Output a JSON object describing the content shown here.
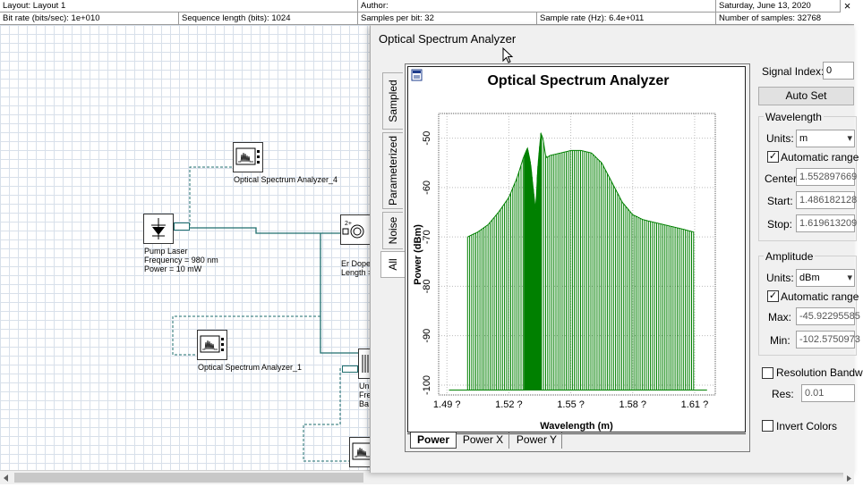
{
  "header": {
    "layout": "Layout: Layout 1",
    "author": "Author:",
    "date": "Saturday, June 13, 2020",
    "bitrate": "Bit rate (bits/sec):  1e+010",
    "seqlen": "Sequence length (bits):  1024",
    "spb": "Samples per bit:  32",
    "samplerate": "Sample rate (Hz):  6.4e+011",
    "nsamples": "Number of samples:  32768",
    "close_glyph": "×"
  },
  "components": {
    "osa4": "Optical Spectrum Analyzer_4",
    "pump_name": "Pump Laser",
    "pump_freq": "Frequency = 980  nm",
    "pump_power": "Power = 10  mW",
    "edf_name": "Er Dope",
    "edf_len": "Length =",
    "osa1": "Optical Spectrum Analyzer_1",
    "uni1": "Uni",
    "uni2": "Fre",
    "uni3": "Ba"
  },
  "window": {
    "title": "Optical Spectrum Analyzer",
    "side_tabs": [
      "Sampled",
      "Parameterized",
      "Noise",
      "All"
    ],
    "bottom_tabs": [
      "Power",
      "Power X",
      "Power Y"
    ]
  },
  "panel": {
    "signal_index_label": "Signal Index:",
    "signal_index_value": "0",
    "auto_set": "Auto Set",
    "wavelength_group": "Wavelength",
    "units_label": "Units:",
    "wl_units": "m",
    "automatic_range": "Automatic range",
    "center_label": "Center:",
    "center_value": "1.552897669",
    "start_label": "Start:",
    "start_value": "1.486182128",
    "stop_label": "Stop:",
    "stop_value": "1.619613209",
    "amplitude_group": "Amplitude",
    "amp_units": "dBm",
    "max_label": "Max:",
    "max_value": "-45.92295585",
    "min_label": "Min:",
    "min_value": "-102.5750973",
    "resolution_bandwidth": "Resolution Bandw",
    "res_label": "Res:",
    "res_value": "0.01",
    "invert_colors": "Invert Colors",
    "check_glyph": "✓",
    "dropdown_glyph": "▾"
  },
  "chart_data": {
    "type": "line",
    "title": "Optical Spectrum Analyzer",
    "xlabel": "Wavelength (m)",
    "ylabel": "Power (dBm)",
    "xlim": [
      1.486,
      1.62
    ],
    "ylim": [
      -102,
      -45
    ],
    "xticks": [
      1.49,
      1.52,
      1.55,
      1.58,
      1.61
    ],
    "xtick_labels": [
      "1.49 ?",
      "1.52 ?",
      "1.55 ?",
      "1.58 ?",
      "1.61 ?"
    ],
    "yticks": [
      -50,
      -60,
      -70,
      -80,
      -90,
      -100
    ],
    "ytick_labels": [
      "-50",
      "-60",
      "-70",
      "-80",
      "-90",
      "-100"
    ],
    "grid": true,
    "series_color": "#008000",
    "envelope_x": [
      1.496,
      1.5,
      1.505,
      1.51,
      1.515,
      1.52,
      1.524,
      1.527,
      1.529,
      1.5305,
      1.532,
      1.533,
      1.534,
      1.5355,
      1.5365,
      1.538,
      1.54,
      1.545,
      1.55,
      1.555,
      1.56,
      1.565,
      1.57,
      1.575,
      1.58,
      1.585,
      1.59,
      1.595,
      1.6,
      1.605,
      1.6095
    ],
    "envelope_y": [
      -101,
      -101,
      -101,
      -101,
      -101,
      -101,
      -101,
      -101,
      -101,
      -101,
      -101,
      -101,
      -101,
      -101,
      -101,
      -101,
      -101,
      -101,
      -101,
      -101,
      -101,
      -101,
      -101,
      -101,
      -101,
      -101,
      -101,
      -101,
      -101,
      -101,
      -101
    ],
    "line_x": [
      1.496,
      1.5,
      1.505,
      1.51,
      1.515,
      1.52,
      1.524,
      1.527,
      1.529,
      1.5305,
      1.532,
      1.533,
      1.534,
      1.5355,
      1.5365,
      1.538,
      1.54,
      1.545,
      1.55,
      1.555,
      1.56,
      1.565,
      1.57,
      1.575,
      1.58,
      1.585,
      1.59,
      1.595,
      1.6,
      1.605,
      1.6095
    ],
    "line_y": [
      -101,
      -101,
      -101,
      -101,
      -101,
      -101,
      -101,
      -101,
      -101,
      -101,
      -101,
      -101,
      -101,
      -101,
      -101,
      -101,
      -101,
      -101,
      -101,
      -101,
      -101,
      -101,
      -101,
      -101,
      -101,
      -101,
      -101,
      -101,
      -101,
      -101,
      -101
    ],
    "spectrum_x": [
      1.5,
      1.505,
      1.51,
      1.515,
      1.52,
      1.524,
      1.527,
      1.529,
      1.5305,
      1.532,
      1.533,
      1.534,
      1.5355,
      1.5365,
      1.538,
      1.54,
      1.545,
      1.55,
      1.555,
      1.56,
      1.565,
      1.57,
      1.575,
      1.58,
      1.585,
      1.59,
      1.595,
      1.6,
      1.605,
      1.6095
    ],
    "spectrum_y": [
      -70,
      -69,
      -67.5,
      -65,
      -62,
      -58,
      -54,
      -52,
      -55,
      -61,
      -65,
      -56,
      -49,
      -50,
      -54,
      -53.5,
      -53,
      -52.5,
      -52.5,
      -53,
      -55,
      -59,
      -63,
      -65.5,
      -66.5,
      -67,
      -67.5,
      -68,
      -68.5,
      -69
    ],
    "baseline_y": -101,
    "baseline_x": [
      1.491,
      1.616
    ]
  },
  "colors": {
    "accent": "#008000",
    "wire": "#1e6e6e",
    "dashed_wire": "#1e6e6e"
  }
}
